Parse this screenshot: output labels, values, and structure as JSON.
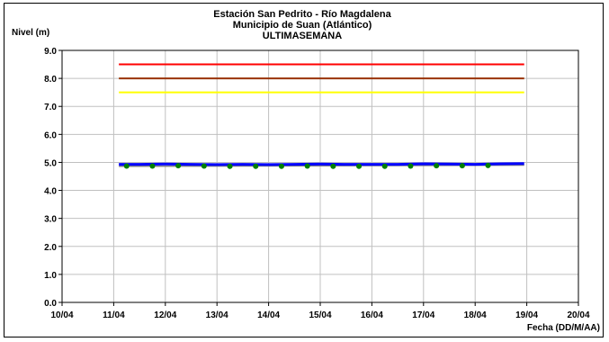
{
  "chart_data": {
    "type": "line",
    "title_lines": [
      "Estación San Pedrito - Río Magdalena",
      "Municipio de Suan (Atlántico)",
      "ULTIMASEMANA"
    ],
    "ylabel": "Nivel (m)",
    "xlabel": "Fecha (DD/M/AA)",
    "ylim": [
      0,
      9
    ],
    "yticks": [
      "0.0",
      "1.0",
      "2.0",
      "3.0",
      "4.0",
      "5.0",
      "6.0",
      "7.0",
      "8.0",
      "9.0"
    ],
    "xticks": [
      "10/04",
      "11/04",
      "12/04",
      "13/04",
      "14/04",
      "15/04",
      "16/04",
      "17/04",
      "18/04",
      "19/04",
      "20/04"
    ],
    "grid": true,
    "legend": "none",
    "thresholds": [
      {
        "color": "#ff0000",
        "value": 8.5,
        "x_start": 11.1,
        "x_end": 18.95
      },
      {
        "color": "#993300",
        "value": 8.0,
        "x_start": 11.1,
        "x_end": 18.95
      },
      {
        "color": "#ffff00",
        "value": 7.5,
        "x_start": 11.1,
        "x_end": 18.95
      }
    ],
    "series": [
      {
        "color": "#0000ff",
        "kind": "line",
        "x": [
          11.1,
          11.5,
          12.0,
          12.5,
          13.0,
          13.5,
          14.0,
          14.5,
          15.0,
          15.5,
          16.0,
          16.5,
          17.0,
          17.5,
          18.0,
          18.5,
          18.95
        ],
        "y": [
          4.93,
          4.93,
          4.94,
          4.93,
          4.92,
          4.93,
          4.92,
          4.93,
          4.94,
          4.93,
          4.93,
          4.93,
          4.95,
          4.94,
          4.93,
          4.95,
          4.96
        ]
      },
      {
        "color": "#008000",
        "kind": "scatter",
        "x": [
          11.25,
          11.75,
          12.25,
          12.75,
          13.25,
          13.75,
          14.25,
          14.75,
          15.25,
          15.75,
          16.25,
          16.75,
          17.25,
          17.75,
          18.25
        ],
        "y": [
          4.87,
          4.87,
          4.88,
          4.87,
          4.86,
          4.86,
          4.86,
          4.87,
          4.86,
          4.86,
          4.86,
          4.87,
          4.88,
          4.88,
          4.89
        ]
      },
      {
        "color": "#808080",
        "kind": "line",
        "x": [
          11.1,
          18.95
        ],
        "y": [
          4.86,
          4.9
        ]
      }
    ]
  }
}
